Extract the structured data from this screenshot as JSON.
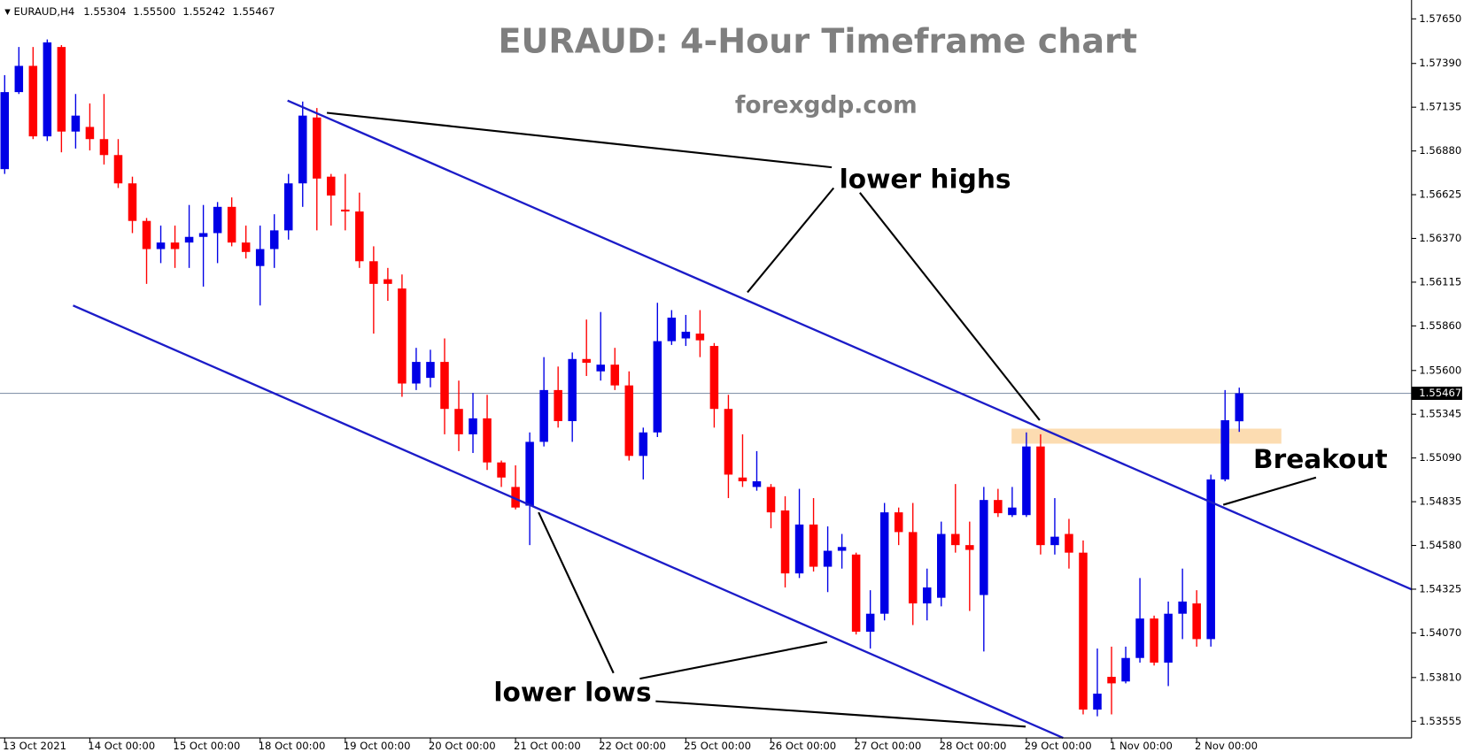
{
  "chart_data": {
    "type": "candlestick",
    "title": "EURAUD: 4-Hour Timeframe chart",
    "subtitle": "forexgdp.com",
    "symbol": "EURAUD,H4",
    "info_values": [
      1.55304,
      {
        "value": 1.555,
        "label": "1.55500"
      },
      1.55242,
      1.55467
    ],
    "x": [
      "13 Oct 2021",
      null,
      null,
      null,
      null,
      null,
      "14 Oct 00:00",
      null,
      null,
      null,
      null,
      null,
      "15 Oct 00:00",
      null,
      null,
      null,
      null,
      null,
      "18 Oct 00:00",
      null,
      null,
      null,
      null,
      null,
      "19 Oct 00:00",
      null,
      null,
      null,
      null,
      null,
      "20 Oct 00:00",
      null,
      null,
      null,
      null,
      null,
      "21 Oct 00:00",
      null,
      null,
      null,
      null,
      null,
      "22 Oct 00:00",
      null,
      null,
      null,
      null,
      null,
      "25 Oct 00:00",
      null,
      null,
      null,
      null,
      null,
      "26 Oct 00:00",
      null,
      null,
      null,
      null,
      null,
      "27 Oct 00:00",
      null,
      null,
      null,
      null,
      null,
      "28 Oct 00:00",
      null,
      null,
      null,
      null,
      null,
      "29 Oct 00:00",
      null,
      null,
      null,
      null,
      null,
      "1 Nov 00:00",
      null,
      null,
      null,
      null,
      null,
      "2 Nov 00:00",
      null,
      null,
      null
    ],
    "open": [
      1.56774,
      1.57223,
      1.57376,
      1.56965,
      1.57486,
      1.56993,
      1.5702,
      1.56949,
      1.56856,
      1.56691,
      1.56472,
      1.56308,
      1.56346,
      1.56346,
      1.56379,
      1.56401,
      1.56554,
      1.56346,
      1.56209,
      1.56308,
      1.56417,
      1.56691,
      1.57075,
      1.5673,
      1.56538,
      1.56527,
      1.56237,
      1.56132,
      1.56078,
      1.55524,
      1.55557,
      1.5565,
      1.55376,
      1.55228,
      1.55321,
      1.55064,
      1.54921,
      1.54812,
      1.55184,
      1.55486,
      1.55305,
      1.55667,
      1.55595,
      1.55634,
      1.55513,
      1.55102,
      1.55239,
      1.55771,
      1.55787,
      1.55815,
      1.55743,
      1.55376,
      1.54976,
      1.54921,
      1.54921,
      1.54784,
      1.54417,
      1.54702,
      1.54456,
      1.54549,
      1.54527,
      1.54077,
      1.54182,
      1.54773,
      1.54658,
      1.54242,
      1.54275,
      1.54647,
      1.54582,
      1.54291,
      1.54845,
      1.54757,
      1.54757,
      1.55157,
      1.54582,
      1.54647,
      1.54538,
      1.53623,
      1.53814,
      1.53787,
      1.53924,
      1.54154,
      1.53897,
      1.54182,
      1.54242,
      1.54034,
      1.54965,
      1.55304
    ],
    "high": [
      1.57322,
      1.57486,
      1.57486,
      1.5753,
      1.57497,
      1.57212,
      1.57157,
      1.57212,
      1.56949,
      1.5673,
      1.56489,
      1.56445,
      1.56445,
      1.56565,
      1.56565,
      1.56582,
      1.56609,
      1.56445,
      1.56445,
      1.56511,
      1.56746,
      1.57168,
      1.5713,
      1.56746,
      1.56746,
      1.56637,
      1.56324,
      1.56198,
      1.5616,
      1.55732,
      1.55721,
      1.55787,
      1.55541,
      1.55469,
      1.55458,
      1.55075,
      1.55047,
      1.55239,
      1.55678,
      1.55623,
      1.55705,
      1.55897,
      1.55941,
      1.55732,
      1.55595,
      1.55267,
      1.55995,
      1.55952,
      1.55924,
      1.55952,
      1.5576,
      1.55458,
      1.55228,
      1.5513,
      1.54938,
      1.54867,
      1.5491,
      1.54856,
      1.54691,
      1.54647,
      1.54538,
      1.54319,
      1.54828,
      1.54801,
      1.54828,
      1.54445,
      1.54719,
      1.54938,
      1.54719,
      1.54921,
      1.5491,
      1.54921,
      1.55239,
      1.55228,
      1.54856,
      1.54735,
      1.54609,
      1.53979,
      1.5399,
      1.5399,
      1.5439,
      1.54171,
      1.54253,
      1.54445,
      1.54319,
      1.54993,
      1.55486,
      1.555
    ],
    "low": [
      1.56746,
      1.57212,
      1.56949,
      1.56938,
      1.56872,
      1.56894,
      1.56883,
      1.56801,
      1.56664,
      1.56401,
      1.56105,
      1.56226,
      1.56198,
      1.56198,
      1.56089,
      1.56226,
      1.56324,
      1.56253,
      1.55979,
      1.56198,
      1.56363,
      1.56554,
      1.56417,
      1.56445,
      1.56417,
      1.56198,
      1.55815,
      1.56006,
      1.55447,
      1.55486,
      1.55502,
      1.55228,
      1.5513,
      1.55119,
      1.5502,
      1.54921,
      1.5479,
      1.54582,
      1.55157,
      1.55267,
      1.55184,
      1.55568,
      1.55541,
      1.55486,
      1.55075,
      1.54965,
      1.55212,
      1.55749,
      1.55743,
      1.55678,
      1.55267,
      1.54856,
      1.54921,
      1.54899,
      1.5468,
      1.54335,
      1.5439,
      1.54428,
      1.54308,
      1.54445,
      1.54061,
      1.53979,
      1.54143,
      1.54582,
      1.54116,
      1.54143,
      1.54225,
      1.54538,
      1.54198,
      1.53962,
      1.54746,
      1.54746,
      1.54746,
      1.54527,
      1.54527,
      1.54445,
      1.53595,
      1.53584,
      1.53595,
      1.53776,
      1.53897,
      1.5388,
      1.5376,
      1.54034,
      1.5399,
      1.5399,
      1.54954,
      1.55242
    ],
    "close": [
      1.57223,
      1.57376,
      1.56965,
      1.57513,
      1.56993,
      1.57086,
      1.56949,
      1.56856,
      1.56691,
      1.56472,
      1.56308,
      1.56346,
      1.56308,
      1.56379,
      1.56401,
      1.56554,
      1.56346,
      1.56291,
      1.56308,
      1.56417,
      1.56691,
      1.57086,
      1.56719,
      1.5662,
      1.56527,
      1.56237,
      1.56105,
      1.56105,
      1.55524,
      1.5565,
      1.5565,
      1.55376,
      1.55228,
      1.55321,
      1.55064,
      1.54976,
      1.54801,
      1.55184,
      1.55486,
      1.55305,
      1.55667,
      1.55645,
      1.55634,
      1.55513,
      1.55102,
      1.55239,
      1.55771,
      1.55908,
      1.55826,
      1.55776,
      1.55376,
      1.54993,
      1.54954,
      1.54954,
      1.54773,
      1.54417,
      1.54702,
      1.54456,
      1.54549,
      1.54571,
      1.54077,
      1.54182,
      1.54773,
      1.54658,
      1.54242,
      1.54335,
      1.54647,
      1.54582,
      1.54554,
      1.54845,
      1.54768,
      1.54801,
      1.55157,
      1.54582,
      1.54631,
      1.54538,
      1.53623,
      1.53716,
      1.53776,
      1.53924,
      1.54154,
      1.53897,
      1.54182,
      1.54253,
      1.54034,
      1.54965,
      1.5531,
      1.55467
    ],
    "up_color": "#0000e6",
    "down_color": "#ff0000",
    "ylim": [
      1.53458,
      1.5776
    ],
    "yticks": [
      {
        "value": 1.5765,
        "label": "1.57650"
      },
      {
        "value": 1.5739,
        "label": "1.57390"
      },
      1.57135,
      {
        "value": 1.5688,
        "label": "1.56880"
      },
      1.56625,
      {
        "value": 1.5637,
        "label": "1.56370"
      },
      1.56115,
      {
        "value": 1.5586,
        "label": "1.55860"
      },
      {
        "value": 1.556,
        "label": "1.55600"
      },
      1.55345,
      {
        "value": 1.5509,
        "label": "1.55090"
      },
      1.54835,
      {
        "value": 1.5458,
        "label": "1.54580"
      },
      1.54325,
      {
        "value": 1.5407,
        "label": "1.54070"
      },
      {
        "value": 1.5381,
        "label": "1.53810"
      },
      1.53555
    ],
    "current_price": 1.55467,
    "annotations": [
      "lower highs",
      "lower lows",
      "Breakout"
    ]
  }
}
